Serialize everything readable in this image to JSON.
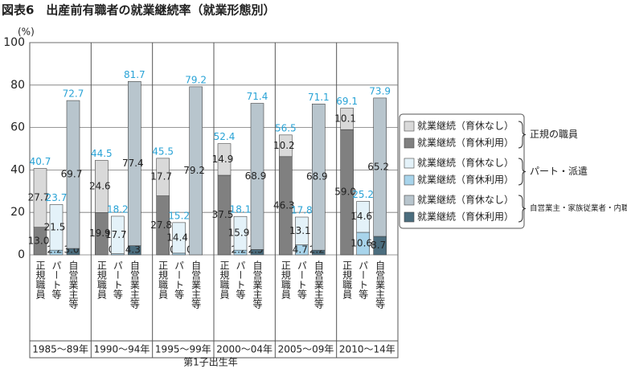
{
  "chart_data": {
    "type": "stacked_bar",
    "title": "図表6　出産前有職者の就業継続率（就業形態別）",
    "y_unit": "(%)",
    "x_label": "第1子出生年",
    "categories": [
      "1985～89年",
      "1990～94年",
      "1995～99年",
      "2000～04年",
      "2005～09年",
      "2010～14年"
    ],
    "bar_types": [
      "正規職員",
      "パート等",
      "自営業主等"
    ],
    "ylim": [
      0,
      100
    ],
    "yticks": [
      0,
      20,
      40,
      60,
      80,
      100
    ],
    "grid": true,
    "groups": [
      {
        "name": "正規の職員",
        "totals": [
          40.7,
          44.5,
          45.5,
          52.4,
          56.5,
          69.1
        ],
        "series": [
          {
            "name": "就業継続（育休なし）",
            "color": "#d9d9d9",
            "values": [
              27.7,
              24.6,
              17.7,
              14.9,
              10.2,
              10.1
            ],
            "value_labels": [
              "27.7",
              "24.6",
              "17.7",
              "14.9",
              "10.2",
              "10.1"
            ]
          },
          {
            "name": "就業継続（育休利用）",
            "color": "#808080",
            "values": [
              13,
              19.9,
              27.8,
              37.5,
              46.3,
              59
            ],
            "value_labels": [
              "13.0",
              "19.9",
              "27.8",
              "37.5",
              "46.3",
              "59.0"
            ]
          }
        ]
      },
      {
        "name": "パート・派遣",
        "totals": [
          23.7,
          18.2,
          15.2,
          18.1,
          17.8,
          25.2
        ],
        "series": [
          {
            "name": "就業継続（育休なし）",
            "color": "#e4f2f9",
            "values": [
              21.5,
              17.7,
              14.4,
              15.9,
              13.1,
              14.6
            ],
            "value_labels": [
              "21.5",
              "17.7",
              "14.4",
              "15.9",
              "13.1",
              "14.6"
            ]
          },
          {
            "name": "就業継続（育休利用）",
            "color": "#a8d4eb",
            "values": [
              2.2,
              0.5,
              0.8,
              2.2,
              4.7,
              10.6
            ],
            "value_labels": [
              "2.2",
              "0.5",
              "0.8",
              "2.2",
              "4.7",
              "10.6"
            ]
          }
        ]
      },
      {
        "name": "自営業主・家族従業者・内職",
        "totals": [
          72.7,
          81.7,
          79.2,
          71.4,
          71.1,
          73.9
        ],
        "series": [
          {
            "name": "就業継続（育休なし）",
            "color": "#b8c5cd",
            "values": [
              69.7,
              77.4,
              79.2,
              68.9,
              68.9,
              65.2
            ],
            "value_labels": [
              "69.7",
              "77.4",
              "79.2",
              "68.9",
              "68.9",
              "65.2"
            ]
          },
          {
            "name": "就業継続（育休利用）",
            "color": "#4b6d7e",
            "values": [
              3,
              4.3,
              0,
              2.5,
              2.2,
              8.7
            ],
            "value_labels": [
              "3.0",
              "4.3",
              "0.0",
              "2.5",
              "2.2",
              "8.7"
            ]
          }
        ]
      }
    ]
  }
}
